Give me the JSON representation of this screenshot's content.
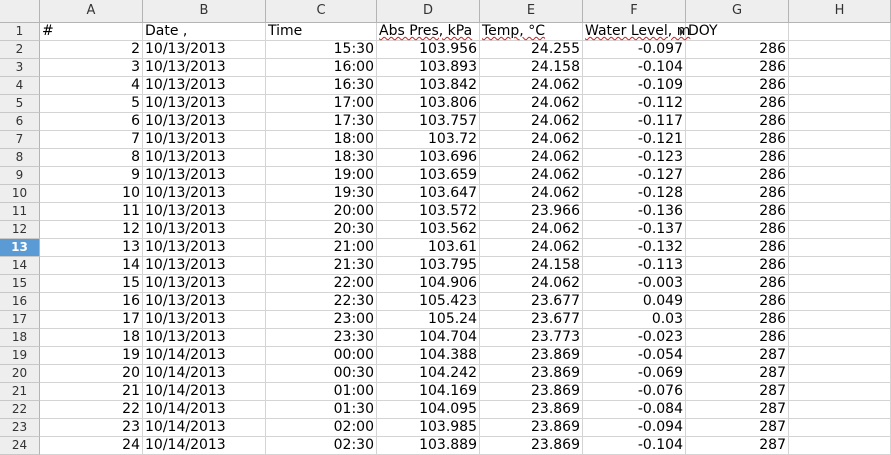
{
  "columns": [
    "A",
    "B",
    "C",
    "D",
    "E",
    "F",
    "G",
    "H"
  ],
  "header_row": {
    "num": "1",
    "a": "#",
    "b": "Date ,",
    "c": "Time",
    "d": "Abs Pres, kPa",
    "e": "Temp, °C",
    "f": "Water Level, m",
    "g": "DOY",
    "h": ""
  },
  "selected_row": "13",
  "rows": [
    {
      "num": "2",
      "a": "2",
      "b": "10/13/2013",
      "c": "15:30",
      "d": "103.956",
      "e": "24.255",
      "f": "-0.097",
      "g": "286"
    },
    {
      "num": "3",
      "a": "3",
      "b": "10/13/2013",
      "c": "16:00",
      "d": "103.893",
      "e": "24.158",
      "f": "-0.104",
      "g": "286"
    },
    {
      "num": "4",
      "a": "4",
      "b": "10/13/2013",
      "c": "16:30",
      "d": "103.842",
      "e": "24.062",
      "f": "-0.109",
      "g": "286"
    },
    {
      "num": "5",
      "a": "5",
      "b": "10/13/2013",
      "c": "17:00",
      "d": "103.806",
      "e": "24.062",
      "f": "-0.112",
      "g": "286"
    },
    {
      "num": "6",
      "a": "6",
      "b": "10/13/2013",
      "c": "17:30",
      "d": "103.757",
      "e": "24.062",
      "f": "-0.117",
      "g": "286"
    },
    {
      "num": "7",
      "a": "7",
      "b": "10/13/2013",
      "c": "18:00",
      "d": "103.72",
      "e": "24.062",
      "f": "-0.121",
      "g": "286"
    },
    {
      "num": "8",
      "a": "8",
      "b": "10/13/2013",
      "c": "18:30",
      "d": "103.696",
      "e": "24.062",
      "f": "-0.123",
      "g": "286"
    },
    {
      "num": "9",
      "a": "9",
      "b": "10/13/2013",
      "c": "19:00",
      "d": "103.659",
      "e": "24.062",
      "f": "-0.127",
      "g": "286"
    },
    {
      "num": "10",
      "a": "10",
      "b": "10/13/2013",
      "c": "19:30",
      "d": "103.647",
      "e": "24.062",
      "f": "-0.128",
      "g": "286"
    },
    {
      "num": "11",
      "a": "11",
      "b": "10/13/2013",
      "c": "20:00",
      "d": "103.572",
      "e": "23.966",
      "f": "-0.136",
      "g": "286"
    },
    {
      "num": "12",
      "a": "12",
      "b": "10/13/2013",
      "c": "20:30",
      "d": "103.562",
      "e": "24.062",
      "f": "-0.137",
      "g": "286"
    },
    {
      "num": "13",
      "a": "13",
      "b": "10/13/2013",
      "c": "21:00",
      "d": "103.61",
      "e": "24.062",
      "f": "-0.132",
      "g": "286"
    },
    {
      "num": "14",
      "a": "14",
      "b": "10/13/2013",
      "c": "21:30",
      "d": "103.795",
      "e": "24.158",
      "f": "-0.113",
      "g": "286"
    },
    {
      "num": "15",
      "a": "15",
      "b": "10/13/2013",
      "c": "22:00",
      "d": "104.906",
      "e": "24.062",
      "f": "-0.003",
      "g": "286"
    },
    {
      "num": "16",
      "a": "16",
      "b": "10/13/2013",
      "c": "22:30",
      "d": "105.423",
      "e": "23.677",
      "f": "0.049",
      "g": "286"
    },
    {
      "num": "17",
      "a": "17",
      "b": "10/13/2013",
      "c": "23:00",
      "d": "105.24",
      "e": "23.677",
      "f": "0.03",
      "g": "286"
    },
    {
      "num": "18",
      "a": "18",
      "b": "10/13/2013",
      "c": "23:30",
      "d": "104.704",
      "e": "23.773",
      "f": "-0.023",
      "g": "286"
    },
    {
      "num": "19",
      "a": "19",
      "b": "10/14/2013",
      "c": "00:00",
      "d": "104.388",
      "e": "23.869",
      "f": "-0.054",
      "g": "287"
    },
    {
      "num": "20",
      "a": "20",
      "b": "10/14/2013",
      "c": "00:30",
      "d": "104.242",
      "e": "23.869",
      "f": "-0.069",
      "g": "287"
    },
    {
      "num": "21",
      "a": "21",
      "b": "10/14/2013",
      "c": "01:00",
      "d": "104.169",
      "e": "23.869",
      "f": "-0.076",
      "g": "287"
    },
    {
      "num": "22",
      "a": "22",
      "b": "10/14/2013",
      "c": "01:30",
      "d": "104.095",
      "e": "23.869",
      "f": "-0.084",
      "g": "287"
    },
    {
      "num": "23",
      "a": "23",
      "b": "10/14/2013",
      "c": "02:00",
      "d": "103.985",
      "e": "23.869",
      "f": "-0.094",
      "g": "287"
    },
    {
      "num": "24",
      "a": "24",
      "b": "10/14/2013",
      "c": "02:30",
      "d": "103.889",
      "e": "23.869",
      "f": "-0.104",
      "g": "287"
    }
  ]
}
